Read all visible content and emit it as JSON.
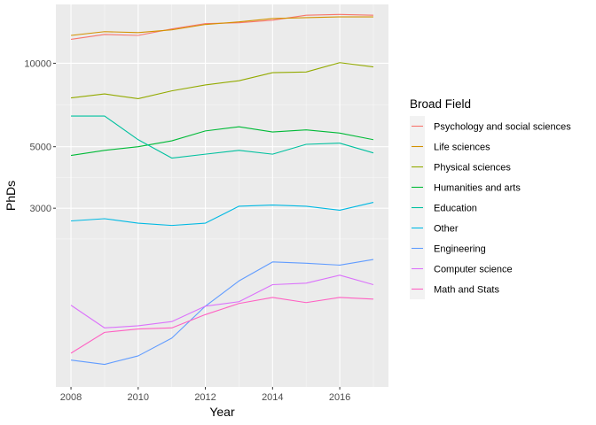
{
  "chart_data": {
    "type": "line",
    "xlabel": "Year",
    "ylabel": "PhDs",
    "y_scale": "log",
    "x_ticks": [
      2008,
      2010,
      2012,
      2014,
      2016
    ],
    "y_ticks": [
      3000,
      5000,
      10000
    ],
    "xlim": [
      2007.55,
      2017.45
    ],
    "ylim": [
      680,
      16300
    ],
    "grid": true,
    "legend_title": "Broad Field",
    "legend_position": "right",
    "x": [
      2008,
      2009,
      2010,
      2011,
      2012,
      2013,
      2014,
      2015,
      2016,
      2017
    ],
    "series": [
      {
        "name": "Psychology and social sciences",
        "color": "#F8766D",
        "values": [
          12200,
          12700,
          12600,
          13300,
          13900,
          14000,
          14300,
          14900,
          15000,
          14900
        ]
      },
      {
        "name": "Life sciences",
        "color": "#D39200",
        "values": [
          12600,
          13000,
          12900,
          13200,
          13800,
          14100,
          14500,
          14600,
          14700,
          14700
        ]
      },
      {
        "name": "Physical sciences",
        "color": "#93AA00",
        "values": [
          7500,
          7750,
          7450,
          7950,
          8350,
          8650,
          9250,
          9300,
          10050,
          9700
        ]
      },
      {
        "name": "Humanities and arts",
        "color": "#00BA38",
        "values": [
          4650,
          4850,
          5000,
          5250,
          5700,
          5900,
          5650,
          5750,
          5600,
          5300
        ]
      },
      {
        "name": "Education",
        "color": "#00C19F",
        "values": [
          6450,
          6450,
          5300,
          4550,
          4700,
          4850,
          4700,
          5100,
          5150,
          4750
        ]
      },
      {
        "name": "Other",
        "color": "#00B9E3",
        "values": [
          2700,
          2750,
          2650,
          2600,
          2650,
          3050,
          3080,
          3050,
          2950,
          3150
        ]
      },
      {
        "name": "Engineering",
        "color": "#619CFF",
        "values": [
          850,
          820,
          880,
          1020,
          1330,
          1640,
          1920,
          1900,
          1870,
          1960
        ]
      },
      {
        "name": "Computer science",
        "color": "#DB72FB",
        "values": [
          1340,
          1110,
          1130,
          1170,
          1330,
          1380,
          1590,
          1610,
          1720,
          1590
        ]
      },
      {
        "name": "Math and Stats",
        "color": "#FF61C3",
        "values": [
          900,
          1070,
          1100,
          1110,
          1240,
          1360,
          1430,
          1370,
          1430,
          1410
        ]
      }
    ]
  }
}
